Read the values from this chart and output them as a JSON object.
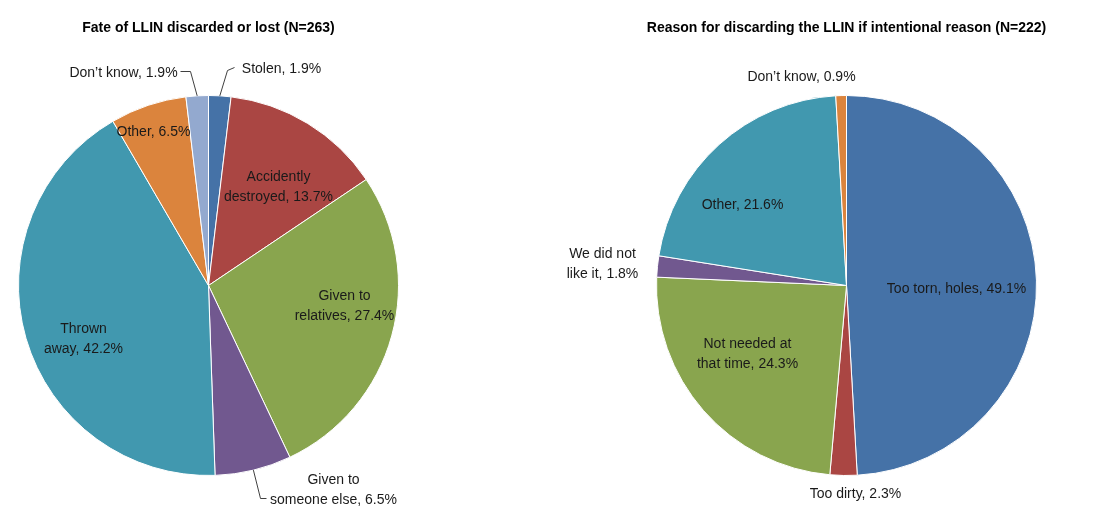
{
  "chart_data": [
    {
      "type": "pie",
      "title": "Fate of LLIN discarded or lost (N=263)",
      "categories": [
        "Stolen",
        "Accidently destroyed",
        "Given to relatives",
        "Given to someone else",
        "Thrown away",
        "Other",
        "Don’t know"
      ],
      "values": [
        1.9,
        13.7,
        27.4,
        6.5,
        42.2,
        6.5,
        1.9
      ],
      "value_labels": [
        "1.9%",
        "13.7%",
        "27.4%",
        "6.5%",
        "42.2%",
        "6.5%",
        "1.9%"
      ],
      "colors": [
        "#4572a7",
        "#aa4643",
        "#89a54e",
        "#71588f",
        "#4198af",
        "#db843d",
        "#93a9cf"
      ]
    },
    {
      "type": "pie",
      "title": "Reason for discarding the LLIN if intentional reason (N=222)",
      "categories": [
        "Too torn, holes",
        "Too dirty",
        "Not needed at that time",
        "We did not like it",
        "Other",
        "Don’t know"
      ],
      "values": [
        49.1,
        2.3,
        24.3,
        1.8,
        21.6,
        0.9
      ],
      "value_labels": [
        "49.1%",
        "2.3%",
        "24.3%",
        "1.8%",
        "21.6%",
        "0.9%"
      ],
      "colors": [
        "#4572a7",
        "#aa4643",
        "#89a54e",
        "#71588f",
        "#4198af",
        "#db843d"
      ]
    }
  ]
}
